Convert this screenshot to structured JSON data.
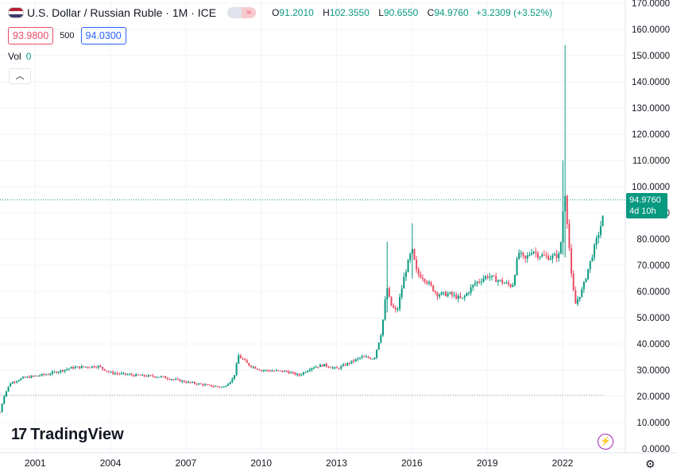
{
  "header": {
    "title": "U.S. Dollar / Russian Ruble · 1M · ICE",
    "ohlc": [
      {
        "label": "O",
        "value": "91.2010"
      },
      {
        "label": "H",
        "value": "102.3550"
      },
      {
        "label": "L",
        "value": "90.6550"
      },
      {
        "label": "C",
        "value": "94.9760"
      }
    ],
    "change": "+3.2309 (+3.52%)",
    "bid": "93.9800",
    "spread": "500",
    "ask": "94.0300",
    "vol_label": "Vol",
    "vol_value": "0",
    "collapse_icon": "chevron-up-icon"
  },
  "branding": {
    "logo_text": "TradingView",
    "logo_mark": "17"
  },
  "current_price": {
    "value": "94.9760",
    "countdown": "4d 10h"
  },
  "colors": {
    "up": "#089981",
    "down": "#e84b64",
    "accent": "#2962ff"
  },
  "chart_data": {
    "type": "candlestick",
    "title": "U.S. Dollar / Russian Ruble · 1M · ICE",
    "x_ticks": [
      "2001",
      "2004",
      "2007",
      "2010",
      "2013",
      "2016",
      "2019",
      "2022"
    ],
    "y_ticks": [
      "0.0000",
      "10.0000",
      "20.0000",
      "30.0000",
      "40.0000",
      "50.0000",
      "60.0000",
      "70.0000",
      "80.0000",
      "90.0000",
      "100.0000",
      "110.0000",
      "120.0000",
      "130.0000",
      "140.0000",
      "150.0000",
      "160.0000",
      "170.0000"
    ],
    "ylim": [
      0,
      170
    ],
    "xlim": [
      1999.6,
      2024.5
    ],
    "current_price": 94.976,
    "price_line_dotted": 94.976,
    "low_line_dotted": 20.5,
    "keyframes": [
      {
        "t": 1999.6,
        "c": 14
      },
      {
        "t": 1999.75,
        "c": 20
      },
      {
        "t": 2000.0,
        "c": 25
      },
      {
        "t": 2000.5,
        "c": 27
      },
      {
        "t": 2001.5,
        "c": 28.5
      },
      {
        "t": 2002.5,
        "c": 31
      },
      {
        "t": 2003.5,
        "c": 31.5
      },
      {
        "t": 2004.0,
        "c": 29
      },
      {
        "t": 2005.0,
        "c": 28
      },
      {
        "t": 2006.0,
        "c": 27.5
      },
      {
        "t": 2007.0,
        "c": 25.5
      },
      {
        "t": 2008.0,
        "c": 24
      },
      {
        "t": 2008.5,
        "c": 23.5
      },
      {
        "t": 2008.9,
        "c": 27
      },
      {
        "t": 2009.1,
        "c": 35.5
      },
      {
        "t": 2009.5,
        "c": 32
      },
      {
        "t": 2010.0,
        "c": 30
      },
      {
        "t": 2011.0,
        "c": 29.5
      },
      {
        "t": 2011.5,
        "c": 28
      },
      {
        "t": 2012.0,
        "c": 31
      },
      {
        "t": 2012.5,
        "c": 32
      },
      {
        "t": 2013.0,
        "c": 30.5
      },
      {
        "t": 2014.0,
        "c": 35
      },
      {
        "t": 2014.5,
        "c": 34.5
      },
      {
        "t": 2014.8,
        "c": 45
      },
      {
        "t": 2015.0,
        "c": 62
      },
      {
        "t": 2015.15,
        "c": 55
      },
      {
        "t": 2015.4,
        "c": 52
      },
      {
        "t": 2015.7,
        "c": 66
      },
      {
        "t": 2016.0,
        "c": 76
      },
      {
        "t": 2016.2,
        "c": 67
      },
      {
        "t": 2016.5,
        "c": 65
      },
      {
        "t": 2017.0,
        "c": 59
      },
      {
        "t": 2017.5,
        "c": 59
      },
      {
        "t": 2018.0,
        "c": 57
      },
      {
        "t": 2018.5,
        "c": 63
      },
      {
        "t": 2019.0,
        "c": 66
      },
      {
        "t": 2019.5,
        "c": 64
      },
      {
        "t": 2020.0,
        "c": 62
      },
      {
        "t": 2020.25,
        "c": 75
      },
      {
        "t": 2020.5,
        "c": 72
      },
      {
        "t": 2020.8,
        "c": 76
      },
      {
        "t": 2021.0,
        "c": 74
      },
      {
        "t": 2021.5,
        "c": 73
      },
      {
        "t": 2021.9,
        "c": 74
      },
      {
        "t": 2022.08,
        "c": 100
      },
      {
        "t": 2022.2,
        "c": 85
      },
      {
        "t": 2022.35,
        "c": 66
      },
      {
        "t": 2022.5,
        "c": 55
      },
      {
        "t": 2022.8,
        "c": 61
      },
      {
        "t": 2023.0,
        "c": 68
      },
      {
        "t": 2023.4,
        "c": 81
      },
      {
        "t": 2023.6,
        "c": 88
      },
      {
        "t": 2023.67,
        "c": 94.976
      }
    ],
    "spikes": [
      {
        "t": 2022.08,
        "high": 154,
        "low": 73
      },
      {
        "t": 2022.0,
        "high": 110,
        "low": 74
      },
      {
        "t": 2016.0,
        "high": 86,
        "low": 65
      },
      {
        "t": 2015.0,
        "high": 79,
        "low": 52
      },
      {
        "t": 2023.67,
        "high": 102.355,
        "low": 90.655
      }
    ]
  }
}
